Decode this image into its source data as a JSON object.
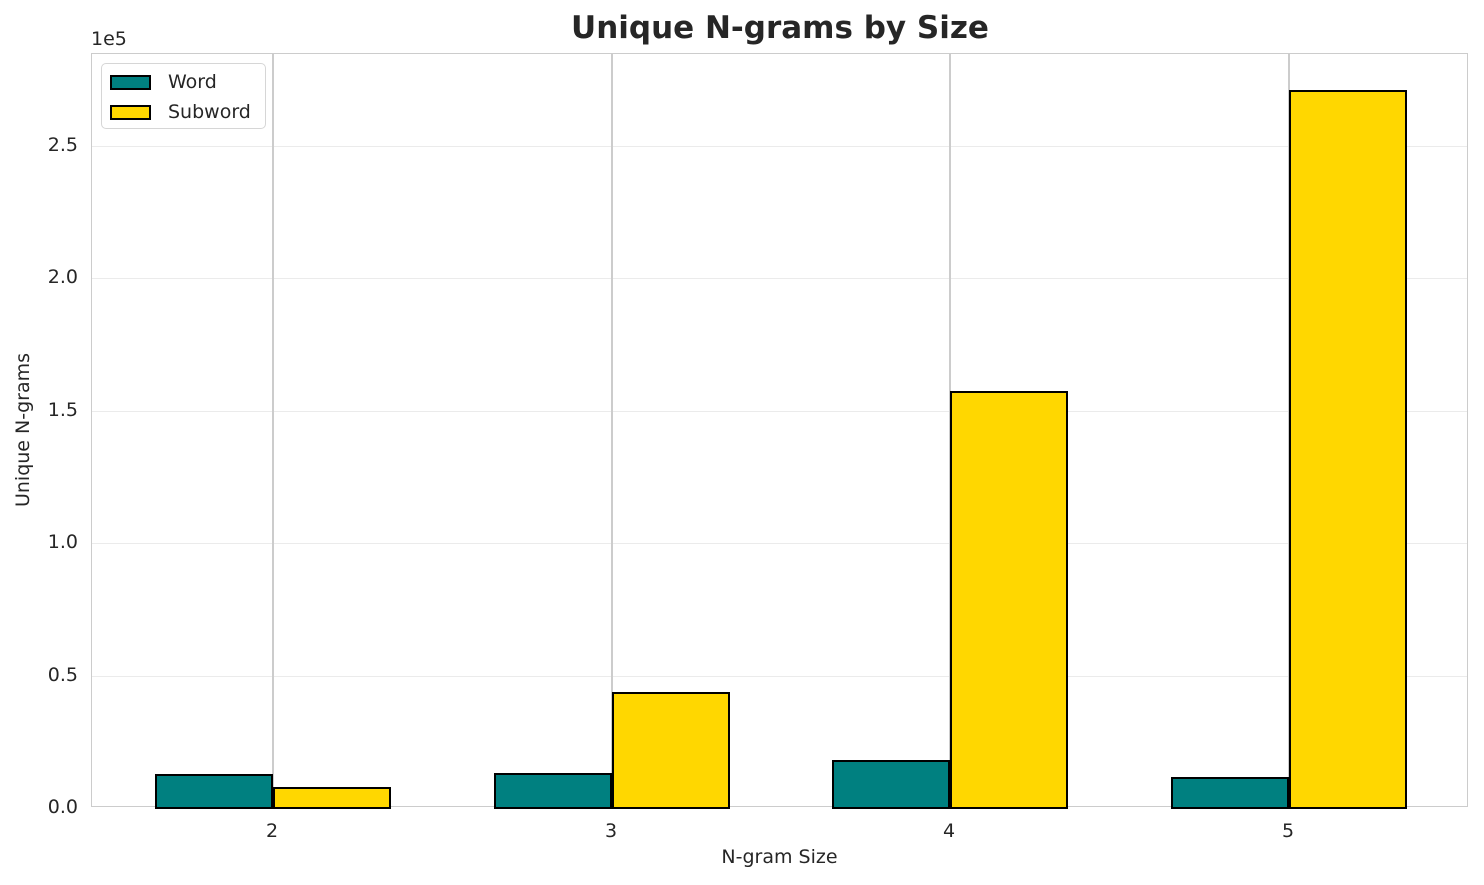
{
  "chart_data": {
    "type": "bar",
    "title": "Unique N-grams by Size",
    "xlabel": "N-gram Size",
    "ylabel": "Unique N-grams",
    "y_offset_label": "1e5",
    "categories": [
      "2",
      "3",
      "4",
      "5"
    ],
    "series": [
      {
        "name": "Word",
        "color": "#008080",
        "values": [
          12800,
          13200,
          18100,
          11700
        ]
      },
      {
        "name": "Subword",
        "color": "#FFD700",
        "values": [
          7900,
          43800,
          157500,
          271100
        ]
      }
    ],
    "ylim": [
      0,
      285000
    ],
    "yticks": [
      0,
      50000,
      100000,
      150000,
      200000,
      250000
    ],
    "ytick_labels": [
      "0.0",
      "0.5",
      "1.0",
      "1.5",
      "2.0",
      "2.5"
    ],
    "grid": true,
    "legend_position": "upper left"
  }
}
